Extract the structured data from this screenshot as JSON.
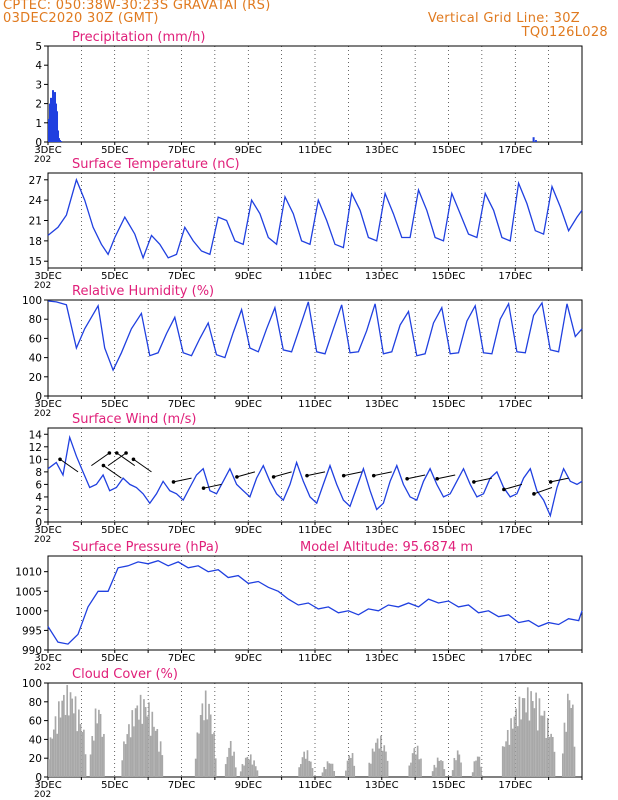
{
  "header": {
    "line1": "CPTEC:   050:38W-30:23S   GRAVATAI (RS)",
    "line2": "03DEC2020 30Z (GMT)",
    "grid_note": "Vertical Grid Line: 30Z",
    "code": "TQ0126L028"
  },
  "colors": {
    "header": "#e07a1f",
    "panel_title": "#e0207a",
    "series": "#2040e0",
    "cloud": "#a8a8a8",
    "grid": "#000000"
  },
  "x_axis": {
    "ticks": [
      "3DEC",
      "5DEC",
      "7DEC",
      "9DEC",
      "11DEC",
      "13DEC",
      "15DEC",
      "17DEC"
    ],
    "under_label": "202"
  },
  "chart_data": [
    {
      "type": "bar",
      "id": "precip",
      "title": "Precipitation (mm/h)",
      "ylim": [
        0,
        5
      ],
      "yticks": [
        0,
        1,
        2,
        3,
        4,
        5
      ],
      "xlim": [
        0,
        16
      ],
      "x": [
        0.03,
        0.06,
        0.09,
        0.12,
        0.15,
        0.18,
        0.21,
        0.24,
        0.27,
        0.3,
        0.33,
        0.36,
        0.39,
        14.55,
        14.62
      ],
      "values": [
        1.2,
        2.0,
        2.3,
        2.1,
        2.7,
        2.4,
        2.6,
        2.0,
        1.6,
        0.6,
        0.2,
        0.1,
        0.05,
        0.25,
        0.1
      ]
    },
    {
      "type": "line",
      "id": "temp",
      "title": "Surface Temperature (nC)",
      "ylim": [
        14,
        28
      ],
      "yticks": [
        15,
        18,
        21,
        24,
        27
      ],
      "xlim": [
        0,
        16
      ],
      "x": [
        0,
        0.3,
        0.55,
        0.85,
        1.1,
        1.35,
        1.6,
        1.8,
        2.0,
        2.3,
        2.6,
        2.85,
        3.1,
        3.35,
        3.6,
        3.85,
        4.1,
        4.35,
        4.6,
        4.85,
        5.1,
        5.35,
        5.6,
        5.85,
        6.1,
        6.35,
        6.6,
        6.85,
        7.1,
        7.35,
        7.6,
        7.85,
        8.1,
        8.35,
        8.6,
        8.85,
        9.1,
        9.35,
        9.6,
        9.85,
        10.1,
        10.35,
        10.6,
        10.85,
        11.1,
        11.35,
        11.6,
        11.85,
        12.1,
        12.35,
        12.6,
        12.85,
        13.1,
        13.35,
        13.6,
        13.85,
        14.1,
        14.35,
        14.6,
        14.85,
        15.1,
        15.35,
        15.6,
        15.85,
        16
      ],
      "values": [
        18.8,
        20.0,
        21.8,
        27.0,
        24.0,
        20.0,
        17.5,
        16.0,
        18.5,
        21.5,
        19.0,
        15.5,
        18.8,
        17.5,
        15.5,
        16.0,
        20.0,
        18.0,
        16.5,
        16.0,
        21.5,
        21.0,
        18.0,
        17.5,
        24.0,
        22.0,
        18.5,
        17.5,
        24.5,
        22.0,
        18.0,
        17.5,
        24.0,
        21.0,
        17.5,
        17.0,
        25.0,
        22.5,
        18.5,
        18.0,
        25.0,
        22.0,
        18.5,
        18.5,
        25.5,
        22.5,
        18.5,
        18.0,
        25.0,
        22.0,
        19.0,
        18.5,
        25.0,
        22.5,
        18.5,
        18.0,
        26.5,
        23.5,
        19.5,
        19.0,
        26.0,
        23.0,
        19.5,
        21.5,
        22.5
      ]
    },
    {
      "type": "line",
      "id": "rh",
      "title": "Relative Humidity (%)",
      "ylim": [
        0,
        100
      ],
      "yticks": [
        0,
        20,
        40,
        60,
        80,
        100
      ],
      "xlim": [
        0,
        16
      ],
      "x": [
        0,
        0.25,
        0.55,
        0.85,
        1.1,
        1.3,
        1.5,
        1.7,
        1.95,
        2.2,
        2.5,
        2.8,
        3.05,
        3.3,
        3.55,
        3.8,
        4.05,
        4.3,
        4.55,
        4.8,
        5.05,
        5.3,
        5.55,
        5.8,
        6.05,
        6.3,
        6.55,
        6.8,
        7.05,
        7.3,
        7.55,
        7.8,
        8.05,
        8.3,
        8.55,
        8.8,
        9.05,
        9.3,
        9.55,
        9.8,
        10.05,
        10.3,
        10.55,
        10.8,
        11.05,
        11.3,
        11.55,
        11.8,
        12.05,
        12.3,
        12.55,
        12.8,
        13.05,
        13.3,
        13.55,
        13.8,
        14.05,
        14.3,
        14.55,
        14.8,
        15.05,
        15.3,
        15.55,
        15.8,
        16
      ],
      "values": [
        99,
        98,
        95,
        50,
        70,
        82,
        94,
        50,
        27,
        45,
        70,
        86,
        42,
        45,
        65,
        82,
        45,
        42,
        60,
        76,
        43,
        40,
        66,
        90,
        50,
        46,
        70,
        92,
        48,
        46,
        72,
        98,
        46,
        44,
        70,
        95,
        45,
        46,
        68,
        96,
        44,
        46,
        74,
        88,
        42,
        44,
        76,
        92,
        44,
        45,
        78,
        94,
        45,
        44,
        80,
        96,
        46,
        45,
        84,
        97,
        48,
        46,
        96,
        62,
        70
      ]
    },
    {
      "type": "line",
      "id": "wind",
      "title": "Surface Wind (m/s)",
      "ylim": [
        0,
        15
      ],
      "yticks": [
        0,
        2,
        4,
        6,
        8,
        10,
        12,
        14
      ],
      "xlim": [
        0,
        16
      ],
      "x": [
        0,
        0.25,
        0.45,
        0.65,
        0.85,
        1.05,
        1.25,
        1.45,
        1.65,
        1.85,
        2.05,
        2.25,
        2.45,
        2.65,
        2.85,
        3.05,
        3.25,
        3.45,
        3.65,
        3.85,
        4.05,
        4.25,
        4.45,
        4.65,
        4.85,
        5.05,
        5.25,
        5.45,
        5.65,
        5.85,
        6.05,
        6.25,
        6.45,
        6.65,
        6.85,
        7.05,
        7.25,
        7.45,
        7.65,
        7.85,
        8.05,
        8.25,
        8.45,
        8.65,
        8.85,
        9.05,
        9.25,
        9.45,
        9.65,
        9.85,
        10.05,
        10.25,
        10.45,
        10.65,
        10.85,
        11.05,
        11.25,
        11.45,
        11.65,
        11.85,
        12.05,
        12.25,
        12.45,
        12.65,
        12.85,
        13.05,
        13.25,
        13.45,
        13.65,
        13.85,
        14.05,
        14.25,
        14.45,
        14.65,
        14.85,
        15.05,
        15.25,
        15.45,
        15.65,
        15.85,
        16
      ],
      "values": [
        8.5,
        9.5,
        7.5,
        13.5,
        10.5,
        8.0,
        5.5,
        6.0,
        7.5,
        5.0,
        5.5,
        7.0,
        6.0,
        5.5,
        4.5,
        3.0,
        4.5,
        6.5,
        5.0,
        4.5,
        3.5,
        5.5,
        7.5,
        8.5,
        5.0,
        4.5,
        6.5,
        8.5,
        6.0,
        5.0,
        4.0,
        7.0,
        9.0,
        6.5,
        4.5,
        3.5,
        6.0,
        9.5,
        6.5,
        4.0,
        3.0,
        6.0,
        9.0,
        6.0,
        3.5,
        2.5,
        5.5,
        8.5,
        5.0,
        2.0,
        3.0,
        6.5,
        9.0,
        6.0,
        4.0,
        3.5,
        6.5,
        8.5,
        6.0,
        4.0,
        4.5,
        6.5,
        8.5,
        6.0,
        4.0,
        4.5,
        7.0,
        8.0,
        5.5,
        4.0,
        4.5,
        7.0,
        8.5,
        5.0,
        3.5,
        1.0,
        5.5,
        8.5,
        6.5,
        6.0,
        6.5
      ]
    },
    {
      "type": "line",
      "id": "pres",
      "title": "Surface Pressure (hPa)",
      "subtitle": "Model Altitude: 95.6874 m",
      "ylim": [
        990,
        1014
      ],
      "yticks": [
        990,
        995,
        1000,
        1005,
        1010
      ],
      "xlim": [
        0,
        16
      ],
      "x": [
        0,
        0.3,
        0.6,
        0.9,
        1.2,
        1.5,
        1.8,
        2.1,
        2.4,
        2.7,
        3.0,
        3.3,
        3.6,
        3.9,
        4.2,
        4.5,
        4.8,
        5.1,
        5.4,
        5.7,
        6.0,
        6.3,
        6.6,
        6.9,
        7.2,
        7.5,
        7.8,
        8.1,
        8.4,
        8.7,
        9.0,
        9.3,
        9.6,
        9.9,
        10.2,
        10.5,
        10.8,
        11.1,
        11.4,
        11.7,
        12.0,
        12.3,
        12.6,
        12.9,
        13.2,
        13.5,
        13.8,
        14.1,
        14.4,
        14.7,
        15.0,
        15.3,
        15.6,
        15.9,
        16
      ],
      "values": [
        996,
        992,
        991.5,
        994,
        1001,
        1005,
        1005,
        1011,
        1011.5,
        1012.5,
        1012,
        1012.8,
        1011.5,
        1012.5,
        1011,
        1011.5,
        1010,
        1010.5,
        1008.5,
        1009,
        1007,
        1007.5,
        1006,
        1005,
        1003,
        1001.5,
        1002,
        1000.5,
        1001,
        999.5,
        1000,
        999,
        1000.5,
        1000,
        1001.5,
        1001,
        1002,
        1001,
        1003,
        1002,
        1002.5,
        1001,
        1001.5,
        999.5,
        1000,
        998.5,
        999,
        997,
        997.5,
        996,
        997,
        996.5,
        998,
        997.5,
        1000
      ]
    },
    {
      "type": "bar",
      "id": "cloud",
      "title": "Cloud Cover (%)",
      "ylim": [
        0,
        100
      ],
      "yticks": [
        0,
        20,
        40,
        60,
        80,
        100
      ],
      "xlim": [
        0,
        16
      ],
      "bin_width": 0.05,
      "segments": [
        {
          "from": 0.0,
          "to": 1.15,
          "peak": 98
        },
        {
          "from": 1.25,
          "to": 1.7,
          "peak": 80
        },
        {
          "from": 2.2,
          "to": 3.4,
          "peak": 88
        },
        {
          "from": 4.4,
          "to": 5.0,
          "peak": 92
        },
        {
          "from": 5.3,
          "to": 5.6,
          "peak": 40
        },
        {
          "from": 5.75,
          "to": 6.25,
          "peak": 25
        },
        {
          "from": 7.5,
          "to": 7.9,
          "peak": 30
        },
        {
          "from": 8.2,
          "to": 8.6,
          "peak": 18
        },
        {
          "from": 8.9,
          "to": 9.2,
          "peak": 28
        },
        {
          "from": 9.6,
          "to": 10.2,
          "peak": 45
        },
        {
          "from": 10.8,
          "to": 11.2,
          "peak": 35
        },
        {
          "from": 11.5,
          "to": 11.9,
          "peak": 22
        },
        {
          "from": 12.1,
          "to": 12.4,
          "peak": 30
        },
        {
          "from": 12.7,
          "to": 13.0,
          "peak": 25
        },
        {
          "from": 13.6,
          "to": 15.2,
          "peak": 96
        },
        {
          "from": 15.4,
          "to": 15.8,
          "peak": 97
        }
      ]
    }
  ]
}
